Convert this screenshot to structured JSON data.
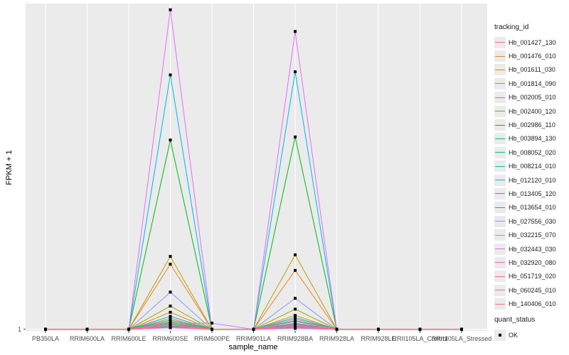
{
  "chart_data": {
    "type": "line",
    "xlabel": "sample_name",
    "ylabel": "FPKM + 1",
    "y_tick_labels": [
      "1"
    ],
    "y_ticks": [
      1
    ],
    "ylim": [
      0.95,
      11.5
    ],
    "categories": [
      "PB350LA",
      "RRIM600LA",
      "RRIM600LE",
      "RRIM600SE",
      "RRIM600PE",
      "RRIM901LA",
      "RRIM928BA",
      "RRIM928LA",
      "RRIM928LE",
      "RRII105LA_Control",
      "RRII105LA_Stressed"
    ],
    "legend_title": "tracking_id",
    "series": [
      {
        "name": "Hb_001427_130",
        "color": "#F8766D",
        "values": [
          1,
          1,
          1,
          1.35,
          1,
          1,
          1.33,
          1,
          1,
          1,
          1
        ]
      },
      {
        "name": "Hb_001476_010",
        "color": "#E9842C",
        "values": [
          1,
          1,
          1,
          3.1,
          1,
          1,
          2.9,
          1,
          1,
          1,
          1
        ]
      },
      {
        "name": "Hb_001611_030",
        "color": "#D69100",
        "values": [
          1,
          1,
          1,
          1.55,
          1,
          1,
          1.45,
          1,
          1,
          1,
          1
        ]
      },
      {
        "name": "Hb_001814_090",
        "color": "#BC9D00",
        "values": [
          1,
          1,
          1,
          3.35,
          1,
          1,
          3.4,
          1,
          1,
          1,
          1
        ]
      },
      {
        "name": "Hb_002005_010",
        "color": "#9CA700",
        "values": [
          1,
          1,
          1,
          1.75,
          1,
          1,
          1.65,
          1,
          1,
          1,
          1
        ]
      },
      {
        "name": "Hb_002400_120",
        "color": "#6FB000",
        "values": [
          1,
          1,
          1,
          1.25,
          1,
          1,
          1.2,
          1,
          1,
          1,
          1
        ]
      },
      {
        "name": "Hb_002986_110",
        "color": "#00B813",
        "values": [
          1,
          1,
          1,
          7.1,
          1,
          1,
          7.2,
          1,
          1,
          1,
          1
        ]
      },
      {
        "name": "Hb_003894_130",
        "color": "#00BD61",
        "values": [
          1,
          1,
          1,
          1.18,
          1,
          1,
          1.15,
          1,
          1,
          1,
          1
        ]
      },
      {
        "name": "Hb_008052_020",
        "color": "#00C08E",
        "values": [
          1,
          1,
          1,
          1.3,
          1,
          1,
          1.28,
          1,
          1,
          1,
          1
        ]
      },
      {
        "name": "Hb_008214_010",
        "color": "#00C0B4",
        "values": [
          1,
          1,
          1,
          1.12,
          1,
          1,
          1.1,
          1,
          1,
          1,
          1
        ]
      },
      {
        "name": "Hb_012120_010",
        "color": "#00BDD4",
        "values": [
          1,
          1,
          1,
          1.42,
          1,
          1,
          1.38,
          1,
          1,
          1,
          1
        ]
      },
      {
        "name": "Hb_013405_120",
        "color": "#00B5EE",
        "values": [
          1,
          1,
          1,
          9.2,
          1,
          1,
          9.3,
          1,
          1,
          1,
          1
        ]
      },
      {
        "name": "Hb_013654_010",
        "color": "#00A7FF",
        "values": [
          1,
          1,
          1,
          1.08,
          1,
          1,
          1.05,
          1,
          1,
          1,
          1
        ]
      },
      {
        "name": "Hb_027556_030",
        "color": "#7F96FF",
        "values": [
          1,
          1,
          1,
          2.2,
          1,
          1,
          2.0,
          1,
          1,
          1,
          1
        ]
      },
      {
        "name": "Hb_032215_070",
        "color": "#BC81FF",
        "values": [
          1,
          1,
          1,
          1.2,
          1.2,
          1,
          1.25,
          1,
          1,
          1,
          1
        ]
      },
      {
        "name": "Hb_032443_030",
        "color": "#E26EF7",
        "values": [
          1,
          1,
          1,
          11.3,
          1,
          1,
          10.6,
          1,
          1,
          1,
          1
        ]
      },
      {
        "name": "Hb_032920_080",
        "color": "#F863DF",
        "values": [
          1,
          1,
          1,
          1.15,
          1,
          1,
          1.12,
          1,
          1,
          1,
          1
        ]
      },
      {
        "name": "Hb_051719_020",
        "color": "#FF62BF",
        "values": [
          1,
          1,
          1,
          1.05,
          1,
          1,
          1.03,
          1,
          1,
          1,
          1
        ]
      },
      {
        "name": "Hb_060245_010",
        "color": "#FF6A9A",
        "values": [
          1,
          1,
          1,
          1.22,
          1,
          1,
          1.18,
          1,
          1,
          1,
          1
        ]
      },
      {
        "name": "Hb_140406_010",
        "color": "#F8766D",
        "values": [
          1,
          1,
          1,
          1.1,
          1,
          1,
          1.08,
          1,
          1,
          1,
          1
        ]
      }
    ],
    "point_legend": {
      "title": "quant_status",
      "label": "OK"
    }
  }
}
